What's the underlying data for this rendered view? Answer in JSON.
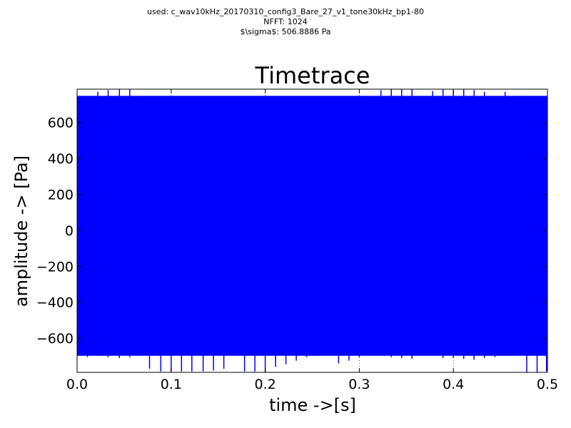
{
  "header": {
    "line1": "used: c_wav10kHz_20170310_config3_Bare_27_v1_tone30kHz_bp1-80",
    "line2": "NFFT: 1024",
    "line3": "$\\sigma$: 506.8886 Pa"
  },
  "chart_data": {
    "type": "line",
    "title": "Timetrace",
    "xlabel": "time ->[s]",
    "ylabel": "amplitude -> [Pa]",
    "xlim": [
      0.0,
      0.5
    ],
    "ylim": [
      -790,
      785
    ],
    "xticks": [
      0.0,
      0.1,
      0.2,
      0.3,
      0.4,
      0.5
    ],
    "xtick_labels": [
      "0.0",
      "0.1",
      "0.2",
      "0.3",
      "0.4",
      "0.5"
    ],
    "yticks": [
      -600,
      -400,
      -200,
      0,
      200,
      400,
      600
    ],
    "ytick_labels": [
      "−600",
      "−400",
      "−200",
      "0",
      "200",
      "400",
      "600"
    ],
    "grid": true,
    "color": "#0000ff",
    "series": [
      {
        "envelope_upper": 745,
        "envelope_lower": -695,
        "positive_peaks": [
          {
            "x": 0.022,
            "y": 770
          },
          {
            "x": 0.033,
            "y": 780
          },
          {
            "x": 0.045,
            "y": 785
          },
          {
            "x": 0.056,
            "y": 785
          },
          {
            "x": 0.323,
            "y": 780
          },
          {
            "x": 0.334,
            "y": 785
          },
          {
            "x": 0.345,
            "y": 785
          },
          {
            "x": 0.356,
            "y": 785
          },
          {
            "x": 0.378,
            "y": 775
          },
          {
            "x": 0.389,
            "y": 785
          },
          {
            "x": 0.4,
            "y": 780
          },
          {
            "x": 0.411,
            "y": 785
          },
          {
            "x": 0.422,
            "y": 780
          },
          {
            "x": 0.433,
            "y": 770
          },
          {
            "x": 0.455,
            "y": 770
          }
        ],
        "negative_peaks": [
          {
            "x": 0.011,
            "y": -705
          },
          {
            "x": 0.033,
            "y": -705
          },
          {
            "x": 0.045,
            "y": -710
          },
          {
            "x": 0.056,
            "y": -705
          },
          {
            "x": 0.077,
            "y": -770
          },
          {
            "x": 0.089,
            "y": -785
          },
          {
            "x": 0.1,
            "y": -785
          },
          {
            "x": 0.111,
            "y": -785
          },
          {
            "x": 0.122,
            "y": -785
          },
          {
            "x": 0.134,
            "y": -785
          },
          {
            "x": 0.145,
            "y": -780
          },
          {
            "x": 0.156,
            "y": -770
          },
          {
            "x": 0.178,
            "y": -785
          },
          {
            "x": 0.189,
            "y": -785
          },
          {
            "x": 0.2,
            "y": -790
          },
          {
            "x": 0.211,
            "y": -760
          },
          {
            "x": 0.222,
            "y": -745
          },
          {
            "x": 0.233,
            "y": -725
          },
          {
            "x": 0.244,
            "y": -705
          },
          {
            "x": 0.278,
            "y": -740
          },
          {
            "x": 0.289,
            "y": -725
          },
          {
            "x": 0.3,
            "y": -705
          },
          {
            "x": 0.334,
            "y": -705
          },
          {
            "x": 0.345,
            "y": -710
          },
          {
            "x": 0.356,
            "y": -715
          },
          {
            "x": 0.389,
            "y": -710
          },
          {
            "x": 0.4,
            "y": -710
          },
          {
            "x": 0.411,
            "y": -715
          },
          {
            "x": 0.422,
            "y": -720
          },
          {
            "x": 0.433,
            "y": -710
          },
          {
            "x": 0.444,
            "y": -705
          },
          {
            "x": 0.478,
            "y": -790
          },
          {
            "x": 0.489,
            "y": -790
          },
          {
            "x": 0.499,
            "y": -785
          }
        ]
      }
    ]
  }
}
